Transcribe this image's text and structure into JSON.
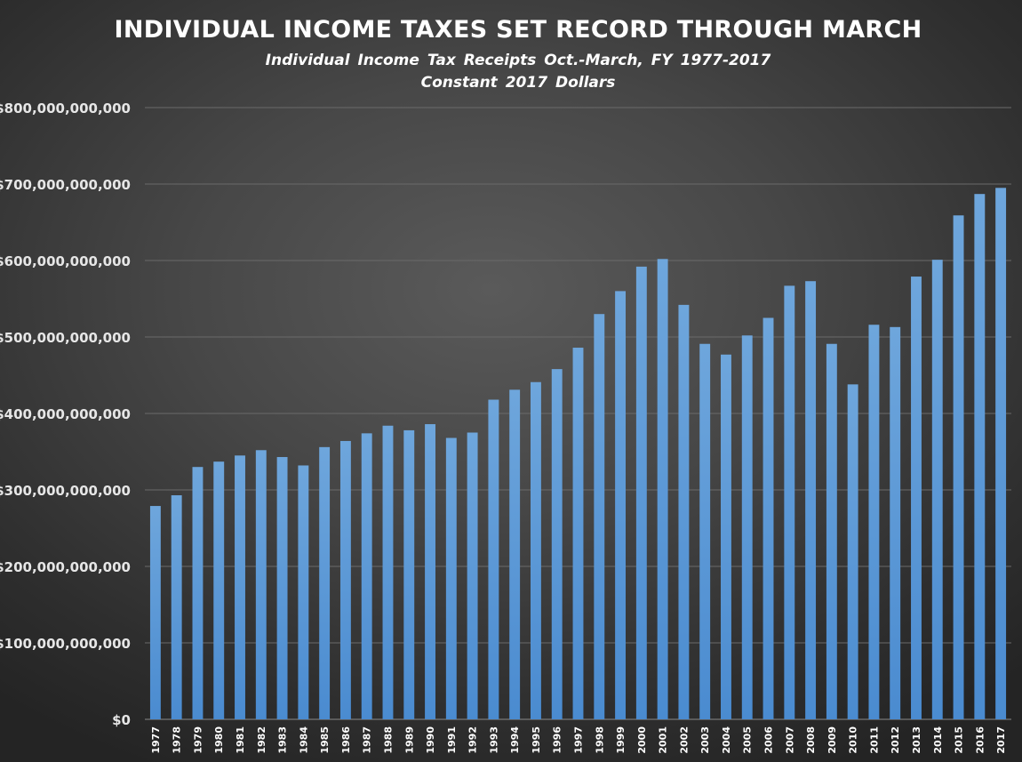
{
  "chart_data": {
    "type": "bar",
    "title": "INDIVIDUAL INCOME TAXES SET RECORD THROUGH MARCH",
    "subtitle": "Individual Income Tax Receipts Oct.-March, FY 1977-2017",
    "subtitle2": "Constant 2017 Dollars",
    "xlabel": "",
    "ylabel": "",
    "ylim": [
      0,
      800000000000
    ],
    "grid": true,
    "legend": "none",
    "bar_color": "#5b9bd5",
    "y_tick_values": [
      0,
      100000000000,
      200000000000,
      300000000000,
      400000000000,
      500000000000,
      600000000000,
      700000000000,
      800000000000
    ],
    "y_tick_labels": [
      "$0",
      "$100,000,000,000",
      "$200,000,000,000",
      "$300,000,000,000",
      "$400,000,000,000",
      "$500,000,000,000",
      "$600,000,000,000",
      "$700,000,000,000",
      "$800,000,000,000"
    ],
    "categories": [
      "1977",
      "1978",
      "1979",
      "1980",
      "1981",
      "1982",
      "1983",
      "1984",
      "1985",
      "1986",
      "1987",
      "1988",
      "1989",
      "1990",
      "1991",
      "1992",
      "1993",
      "1994",
      "1995",
      "1996",
      "1997",
      "1998",
      "1999",
      "2000",
      "2001",
      "2002",
      "2003",
      "2004",
      "2005",
      "2006",
      "2007",
      "2008",
      "2009",
      "2010",
      "2011",
      "2012",
      "2013",
      "2014",
      "2015",
      "2016",
      "2017"
    ],
    "values": [
      279000000000,
      293000000000,
      330000000000,
      337000000000,
      345000000000,
      352000000000,
      343000000000,
      332000000000,
      356000000000,
      364000000000,
      374000000000,
      384000000000,
      378000000000,
      386000000000,
      368000000000,
      375000000000,
      418000000000,
      431000000000,
      441000000000,
      458000000000,
      486000000000,
      530000000000,
      560000000000,
      592000000000,
      602000000000,
      542000000000,
      491000000000,
      477000000000,
      502000000000,
      525000000000,
      567000000000,
      573000000000,
      491000000000,
      438000000000,
      516000000000,
      513000000000,
      579000000000,
      601000000000,
      659000000000,
      687000000000,
      695000000000
    ]
  }
}
